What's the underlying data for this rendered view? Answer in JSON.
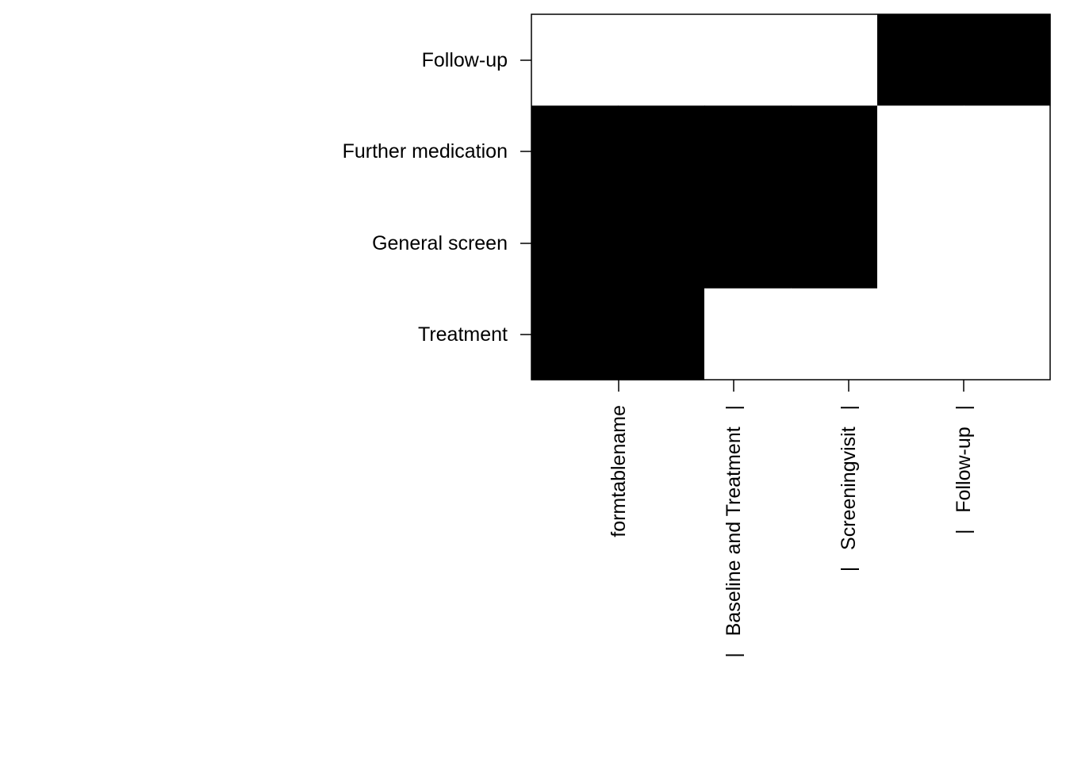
{
  "chart_data": {
    "type": "heatmap",
    "title": "",
    "xlabel": "",
    "ylabel": "",
    "x_tick_labels": [
      "formtablename",
      "|   Baseline and Treatment   |",
      "|   Screeningvisit   |",
      "|   Follow-up   |"
    ],
    "y_tick_labels": [
      "Follow-up",
      "Further medication",
      "General screen",
      "Treatment"
    ],
    "rows_top_to_bottom": [
      "Follow-up",
      "Further medication",
      "General screen",
      "Treatment"
    ],
    "n_columns": 6,
    "matrix": [
      [
        0,
        0,
        0,
        0,
        1,
        1
      ],
      [
        1,
        1,
        1,
        1,
        0,
        0
      ],
      [
        1,
        1,
        1,
        1,
        0,
        0
      ],
      [
        1,
        1,
        0,
        0,
        0,
        0
      ]
    ],
    "colors": {
      "filled": "#000000",
      "empty": "#ffffff"
    },
    "grid": false,
    "legend": "none"
  }
}
